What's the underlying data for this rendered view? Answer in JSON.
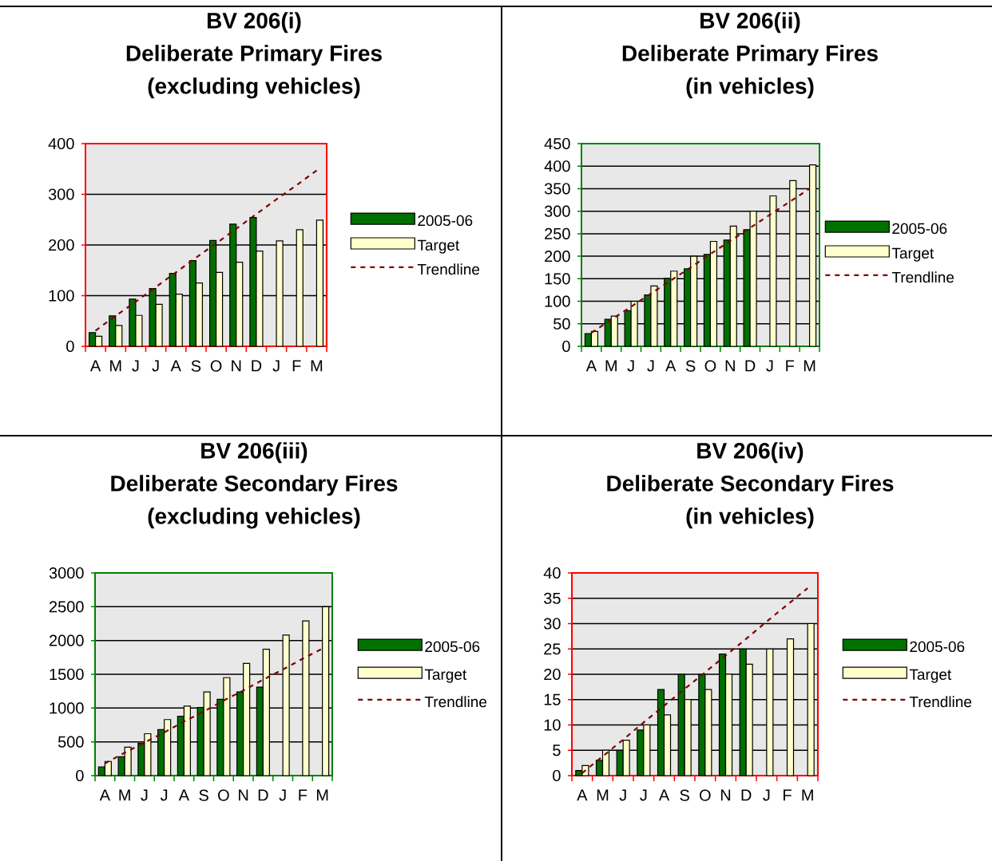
{
  "chart_data": [
    {
      "type": "bar",
      "title": "BV 206(i)",
      "subtitle": "Deliberate Primary Fires (excluding vehicles)",
      "categories": [
        "A",
        "M",
        "J",
        "J",
        "A",
        "S",
        "O",
        "N",
        "D",
        "J",
        "F",
        "M"
      ],
      "series": [
        {
          "name": "2005-06",
          "color": "#007000",
          "values": [
            27,
            60,
            93,
            114,
            144,
            169,
            209,
            241,
            254,
            null,
            null,
            null
          ]
        },
        {
          "name": "Target",
          "color": "#ffffcc",
          "values": [
            20,
            41,
            61,
            83,
            103,
            125,
            146,
            166,
            188,
            208,
            230,
            249
          ]
        },
        {
          "name": "Trendline",
          "type": "line",
          "line_style": "dashed",
          "color": "#800000",
          "values": [
            31,
            60,
            88,
            117,
            146,
            175,
            203,
            232,
            261,
            290,
            318,
            347
          ]
        }
      ],
      "ylim": [
        0,
        400
      ],
      "yticks": [
        0,
        100,
        200,
        300,
        400
      ],
      "grid": "y",
      "legend": "right"
    },
    {
      "type": "bar",
      "title": "BV 206(ii)",
      "subtitle": "Deliberate Primary Fires (in vehicles)",
      "categories": [
        "A",
        "M",
        "J",
        "J",
        "A",
        "S",
        "O",
        "N",
        "D",
        "J",
        "F",
        "M"
      ],
      "series": [
        {
          "name": "2005-06",
          "color": "#007000",
          "values": [
            28,
            60,
            79,
            114,
            151,
            172,
            204,
            236,
            259,
            null,
            null,
            null
          ]
        },
        {
          "name": "Target",
          "color": "#ffffcc",
          "values": [
            33,
            67,
            100,
            134,
            167,
            200,
            233,
            267,
            300,
            334,
            368,
            403
          ]
        },
        {
          "name": "Trendline",
          "type": "line",
          "line_style": "dashed",
          "color": "#800000",
          "values": [
            30,
            59,
            88,
            117,
            146,
            175,
            205,
            234,
            263,
            292,
            321,
            350
          ]
        }
      ],
      "ylim": [
        0,
        450
      ],
      "yticks": [
        0,
        50,
        100,
        150,
        200,
        250,
        300,
        350,
        400,
        450
      ],
      "grid": "y",
      "legend": "right"
    },
    {
      "type": "bar",
      "title": "BV 206(iii)",
      "subtitle": "Deliberate Secondary Fires (excluding vehicles)",
      "categories": [
        "A",
        "M",
        "J",
        "J",
        "A",
        "S",
        "O",
        "N",
        "D",
        "J",
        "F",
        "M"
      ],
      "series": [
        {
          "name": "2005-06",
          "color": "#007000",
          "values": [
            130,
            280,
            480,
            680,
            880,
            1010,
            1130,
            1240,
            1310,
            null,
            null,
            null
          ]
        },
        {
          "name": "Target",
          "color": "#ffffcc",
          "values": [
            210,
            420,
            620,
            830,
            1030,
            1240,
            1450,
            1660,
            1870,
            2080,
            2290,
            2500
          ]
        },
        {
          "name": "Trendline",
          "type": "line",
          "line_style": "dashed",
          "color": "#800000",
          "values": [
            180,
            340,
            490,
            640,
            800,
            950,
            1110,
            1260,
            1420,
            1570,
            1730,
            1880
          ]
        }
      ],
      "ylim": [
        0,
        3000
      ],
      "yticks": [
        0,
        500,
        1000,
        1500,
        2000,
        2500,
        3000
      ],
      "grid": "y",
      "legend": "right"
    },
    {
      "type": "bar",
      "title": "BV 206(iv)",
      "subtitle": "Deliberate Secondary Fires (in vehicles)",
      "categories": [
        "A",
        "M",
        "J",
        "J",
        "A",
        "S",
        "O",
        "N",
        "D",
        "J",
        "F",
        "M"
      ],
      "series": [
        {
          "name": "2005-06",
          "color": "#007000",
          "values": [
            1,
            3,
            5,
            9,
            17,
            20,
            20,
            24,
            25,
            null,
            null,
            null
          ]
        },
        {
          "name": "Target",
          "color": "#ffffcc",
          "values": [
            2,
            5,
            7,
            10,
            12,
            15,
            17,
            20,
            22,
            25,
            27,
            30
          ]
        },
        {
          "name": "Trendline",
          "type": "line",
          "line_style": "dashed",
          "color": "#800000",
          "values": [
            0.5,
            3.8,
            7.1,
            10.5,
            13.8,
            17.1,
            20.4,
            23.7,
            27.0,
            30.4,
            33.7,
            37.0
          ]
        }
      ],
      "ylim": [
        0,
        40
      ],
      "yticks": [
        0,
        5,
        10,
        15,
        20,
        25,
        30,
        35,
        40
      ],
      "grid": "y",
      "legend": "right"
    }
  ]
}
